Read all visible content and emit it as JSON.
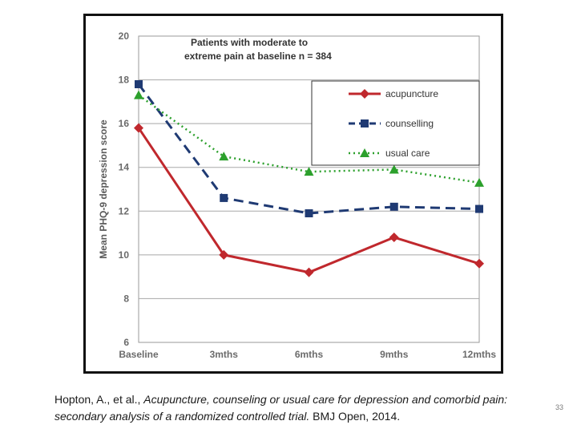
{
  "citation": {
    "authors": "Hopton, A., et al., ",
    "title": "Acupuncture, counseling or usual care for depression and comorbid pain: secondary analysis of a randomized controlled trial.",
    "journal": " BMJ Open, 2014."
  },
  "slide_number": "33",
  "chart_data": {
    "type": "line",
    "title": "Patients with moderate to extreme pain at baseline n = 384",
    "title_lines": [
      "Patients with moderate to",
      "extreme pain at baseline n = 384"
    ],
    "xlabel": "",
    "ylabel": "Mean PHQ-9 depression score",
    "categories": [
      "Baseline",
      "3mths",
      "6mths",
      "9mths",
      "12mths"
    ],
    "ylim": [
      6,
      20
    ],
    "yticks": [
      6,
      8,
      10,
      12,
      14,
      16,
      18,
      20
    ],
    "grid": true,
    "legend_position": "top-right",
    "series": [
      {
        "name": "acupuncture",
        "values": [
          15.8,
          10.0,
          9.2,
          10.8,
          9.6
        ],
        "color": "#c0282d",
        "marker": "diamond",
        "line": "solid"
      },
      {
        "name": "counselling",
        "values": [
          17.8,
          12.6,
          11.9,
          12.2,
          12.1
        ],
        "color": "#1f3a73",
        "marker": "square",
        "line": "dashed"
      },
      {
        "name": "usual care",
        "values": [
          17.3,
          14.5,
          13.8,
          13.9,
          13.3
        ],
        "color": "#2ca02c",
        "marker": "triangle",
        "line": "dotted"
      }
    ]
  }
}
